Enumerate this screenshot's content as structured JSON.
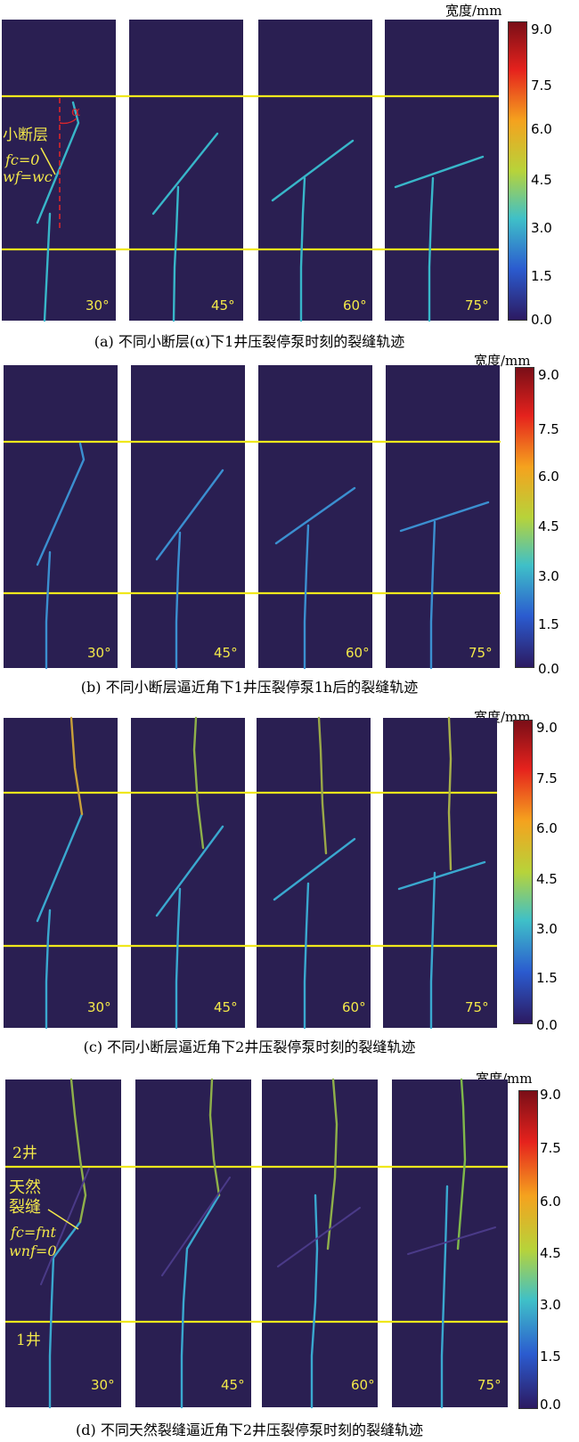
{
  "colorbar": {
    "unit_label": "宽度/mm",
    "ticks": [
      "9.0",
      "7.5",
      "6.0",
      "4.5",
      "3.0",
      "1.5",
      "0.0"
    ]
  },
  "panels": [
    {
      "caption": "(a) 不同小断层(α)下1井压裂停泵时刻的裂缝轨迹",
      "angles": [
        "30°",
        "45°",
        "60°",
        "75°"
      ],
      "annotations": {
        "label": "小断层",
        "eq1": "fc=0",
        "eq2": "wf=wc",
        "alpha": "α"
      }
    },
    {
      "caption": "(b) 不同小断层逼近角下1井压裂停泵1h后的裂缝轨迹",
      "angles": [
        "30°",
        "45°",
        "60°",
        "75°"
      ]
    },
    {
      "caption": "(c) 不同小断层逼近角下2井压裂停泵时刻的裂缝轨迹",
      "angles": [
        "30°",
        "45°",
        "60°",
        "75°"
      ]
    },
    {
      "caption": "(d) 不同天然裂缝逼近角下2井压裂停泵时刻的裂缝轨迹",
      "angles": [
        "30°",
        "45°",
        "60°",
        "75°"
      ],
      "annotations": {
        "well2": "2井",
        "label1": "天然",
        "label2": "裂缝",
        "eq1": "fc=fnt",
        "eq2": "wnf=0",
        "well1": "1井"
      }
    }
  ],
  "colors": {
    "background": "#2a1f52",
    "boundary_line": "#f0e81c",
    "annotation_text": "#f4e94a",
    "fault_marker": "#d9262b",
    "crack": "#38b6c9"
  }
}
